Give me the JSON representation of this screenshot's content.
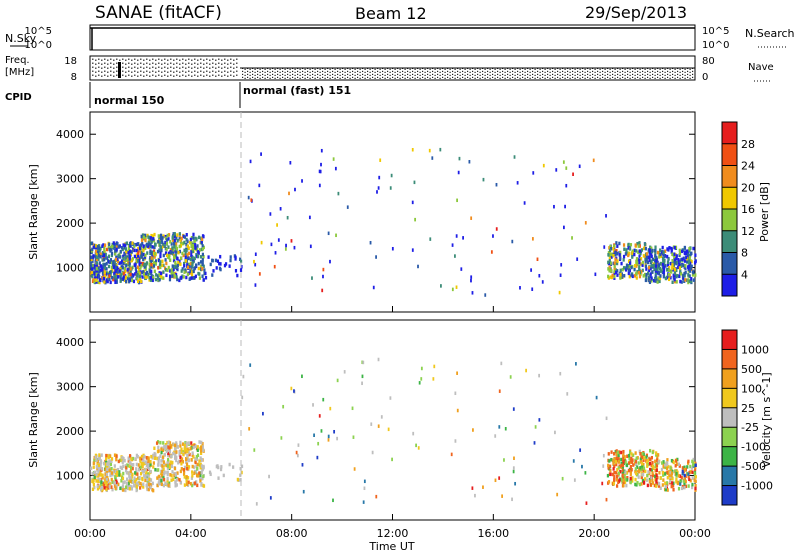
{
  "header": {
    "title": "SANAE (fitACF)",
    "beam": "Beam 12",
    "date": "29/Sep/2013"
  },
  "top_panels": {
    "nsky_label": "N.Sky",
    "nsearch_label": "N.Search",
    "nsky_ticks": [
      "10^5",
      "10^0"
    ],
    "nsearch_ticks": [
      "10^5",
      "10^0"
    ],
    "freq_label": "Freq.",
    "freq_unit": "[MHz]",
    "freq_ticks": [
      "18",
      "8"
    ],
    "nave_label": "Nave",
    "nave_ticks": [
      "80",
      "0"
    ],
    "cpid_label": "CPID",
    "cpid_modes": [
      {
        "name": "normal 150",
        "start_hour": 0,
        "end_hour": 6
      },
      {
        "name": "normal (fast) 151",
        "start_hour": 6,
        "end_hour": 24
      }
    ]
  },
  "chart_data": [
    {
      "type": "heatmap",
      "name": "power",
      "ylabel": "Slant Range [km]",
      "xlabel": "",
      "xlim": [
        0,
        24
      ],
      "ylim": [
        0,
        4500
      ],
      "y_ticks": [
        1000,
        2000,
        3000,
        4000
      ],
      "colorbar": {
        "label": "Power [dB]",
        "ticks": [
          "4",
          "8",
          "12",
          "16",
          "20",
          "24",
          "28"
        ],
        "colors": [
          "#1e1ee6",
          "#2a5aa8",
          "#3c8c78",
          "#8cc83c",
          "#f0c800",
          "#f08c1e",
          "#f05014",
          "#e61e1e"
        ]
      },
      "regions": [
        {
          "t0": 0.0,
          "t1": 6.0,
          "r0": 700,
          "r1": 1500,
          "level": "mixed"
        },
        {
          "t0": 20.3,
          "t1": 24.0,
          "r0": 700,
          "r1": 1500,
          "level": "mixed"
        }
      ]
    },
    {
      "type": "heatmap",
      "name": "velocity",
      "ylabel": "Slant Range [km]",
      "xlabel": "Time UT",
      "xlim": [
        0,
        24
      ],
      "ylim": [
        0,
        4500
      ],
      "y_ticks": [
        1000,
        2000,
        3000,
        4000
      ],
      "colorbar": {
        "label": "Velocity [m s^-1]",
        "ticks": [
          "1000",
          "500",
          "100",
          "25",
          "-25",
          "-100",
          "-500",
          "-1000"
        ],
        "colors": [
          "#1e3cc8",
          "#2878a8",
          "#3cb446",
          "#8cd250",
          "#bebebe",
          "#f0c81e",
          "#f0a01e",
          "#f0641e",
          "#e61e1e"
        ]
      }
    }
  ],
  "x_ticks": [
    "00:00",
    "04:00",
    "08:00",
    "12:00",
    "16:00",
    "20:00",
    "00:00"
  ],
  "x_tick_hours": [
    0,
    4,
    8,
    12,
    16,
    20,
    24
  ]
}
